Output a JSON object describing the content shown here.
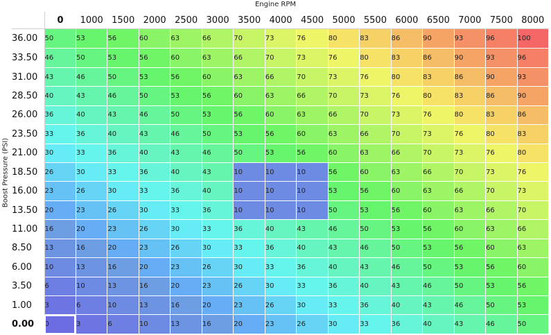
{
  "table": {
    "x_axis_title": "Engine RPM",
    "y_axis_title": "Boost Pressure (PSI)",
    "rpm": [
      "0",
      "1000",
      "1500",
      "2000",
      "2500",
      "3000",
      "3500",
      "4000",
      "4500",
      "5000",
      "5500",
      "6000",
      "6500",
      "7000",
      "7500",
      "8000"
    ],
    "boost": [
      "36.00",
      "33.50",
      "31.00",
      "28.50",
      "26.00",
      "23.50",
      "21.00",
      "18.50",
      "16.00",
      "13.50",
      "11.00",
      "8.50",
      "6.00",
      "3.50",
      "1.00",
      "0.00"
    ],
    "values": [
      [
        50,
        53,
        56,
        60,
        63,
        66,
        70,
        73,
        76,
        80,
        83,
        86,
        90,
        93,
        96,
        100
      ],
      [
        46,
        50,
        53,
        56,
        60,
        63,
        66,
        70,
        73,
        76,
        80,
        83,
        86,
        90,
        93,
        96
      ],
      [
        43,
        46,
        50,
        53,
        56,
        60,
        63,
        66,
        70,
        73,
        76,
        80,
        83,
        86,
        90,
        93
      ],
      [
        40,
        43,
        46,
        50,
        53,
        56,
        60,
        63,
        66,
        70,
        73,
        76,
        80,
        83,
        86,
        90
      ],
      [
        36,
        40,
        43,
        46,
        50,
        53,
        56,
        60,
        63,
        66,
        70,
        73,
        76,
        80,
        83,
        86
      ],
      [
        33,
        36,
        40,
        43,
        46,
        50,
        53,
        56,
        60,
        63,
        66,
        70,
        73,
        76,
        80,
        83
      ],
      [
        30,
        33,
        36,
        40,
        43,
        46,
        50,
        53,
        56,
        60,
        63,
        66,
        70,
        73,
        76,
        80
      ],
      [
        26,
        30,
        33,
        36,
        40,
        43,
        10,
        10,
        10,
        56,
        60,
        63,
        66,
        70,
        73,
        76
      ],
      [
        23,
        26,
        30,
        33,
        36,
        40,
        10,
        10,
        10,
        53,
        56,
        60,
        63,
        66,
        70,
        73
      ],
      [
        20,
        23,
        26,
        30,
        33,
        36,
        10,
        10,
        10,
        50,
        53,
        56,
        60,
        63,
        66,
        70
      ],
      [
        16,
        20,
        23,
        26,
        30,
        33,
        36,
        40,
        43,
        46,
        50,
        53,
        56,
        60,
        63,
        66
      ],
      [
        13,
        16,
        20,
        23,
        26,
        30,
        33,
        36,
        40,
        43,
        46,
        50,
        53,
        56,
        60,
        63
      ],
      [
        10,
        13,
        16,
        20,
        23,
        26,
        30,
        33,
        36,
        40,
        43,
        46,
        50,
        53,
        56,
        60
      ],
      [
        6,
        10,
        13,
        16,
        20,
        23,
        26,
        30,
        33,
        36,
        40,
        43,
        46,
        50,
        53,
        56
      ],
      [
        3,
        6,
        10,
        13,
        16,
        20,
        23,
        26,
        30,
        33,
        36,
        40,
        43,
        46,
        50,
        53
      ],
      [
        0,
        3,
        6,
        10,
        13,
        16,
        20,
        23,
        26,
        30,
        33,
        36,
        40,
        43,
        46,
        50
      ]
    ]
  }
}
